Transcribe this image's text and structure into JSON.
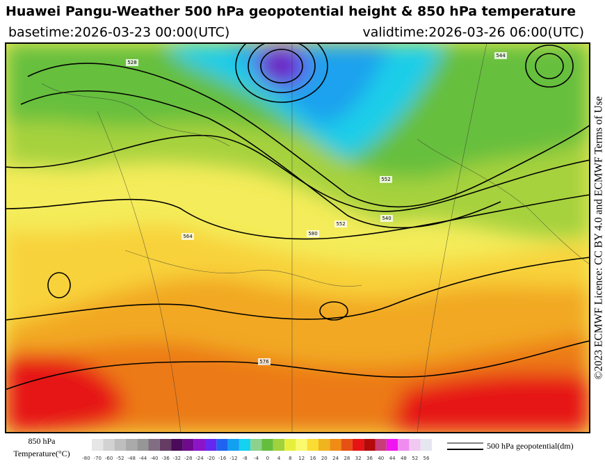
{
  "header": {
    "title": "Huawei Pangu-Weather 500 hPa geopotential height & 850 hPa temperature",
    "basetime": "basetime:2026-03-23 00:00(UTC)",
    "validtime": "validtime:2026-03-26 06:00(UTC)"
  },
  "license": "©2023 ECMWF Licence: CC BY 4.0 and ECMWF Terms of Use",
  "map": {
    "contour_labels": [
      "564",
      "552",
      "540",
      "576",
      "528",
      "580",
      "552",
      "544"
    ]
  },
  "colorbar": {
    "label_line1": "850 hPa",
    "label_line2": "Temperature(°C)",
    "ticks": [
      -80,
      -70,
      -60,
      -52,
      -48,
      -44,
      -40,
      -36,
      -32,
      -28,
      -24,
      -20,
      -16,
      -12,
      -8,
      -4,
      0,
      4,
      8,
      12,
      16,
      20,
      24,
      28,
      32,
      36,
      40,
      44,
      48,
      52,
      56
    ],
    "colors": [
      "#e6e6e6",
      "#d2d2d2",
      "#bebebe",
      "#aaaaaa",
      "#969696",
      "#826e82",
      "#643c64",
      "#4b0a5a",
      "#6e0a8c",
      "#8c14c8",
      "#6428f0",
      "#1e64f0",
      "#14a0f0",
      "#14d2f0",
      "#8cd28c",
      "#64be3c",
      "#a0d23c",
      "#e6f03c",
      "#fafa6e",
      "#fadc32",
      "#f0b41e",
      "#f08c14",
      "#e65014",
      "#e61414",
      "#b40a0a",
      "#c83c78",
      "#f014f0",
      "#f08cf0",
      "#f0c8f0",
      "#e6e6f0"
    ]
  },
  "contour_legend": "500 hPa geopotential(dm)"
}
